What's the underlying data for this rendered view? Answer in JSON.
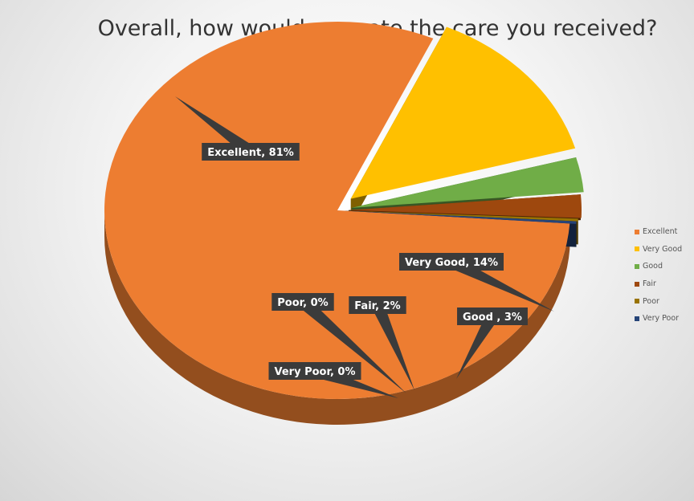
{
  "chart_data": {
    "type": "pie",
    "title": "Overall, how would you rate the care you received?",
    "slices": [
      {
        "name": "Excellent",
        "value": 81,
        "color": "#ED7D31",
        "label": "Excellent, 81%"
      },
      {
        "name": "Very Good",
        "value": 14,
        "color": "#FFC000",
        "label": "Very Good,  14%"
      },
      {
        "name": "Good",
        "value": 3,
        "color": "#70AD47",
        "label": "Good , 3%"
      },
      {
        "name": "Fair",
        "value": 2,
        "color": "#9E480E",
        "label": "Fair, 2%"
      },
      {
        "name": "Poor",
        "value": 0,
        "color": "#997300",
        "label": "Poor,  0%"
      },
      {
        "name": "Very Poor",
        "value": 0,
        "color": "#264478",
        "label": "Very Poor, 0%"
      }
    ],
    "legend": {
      "position": "right"
    },
    "style": "3d-exploded"
  }
}
